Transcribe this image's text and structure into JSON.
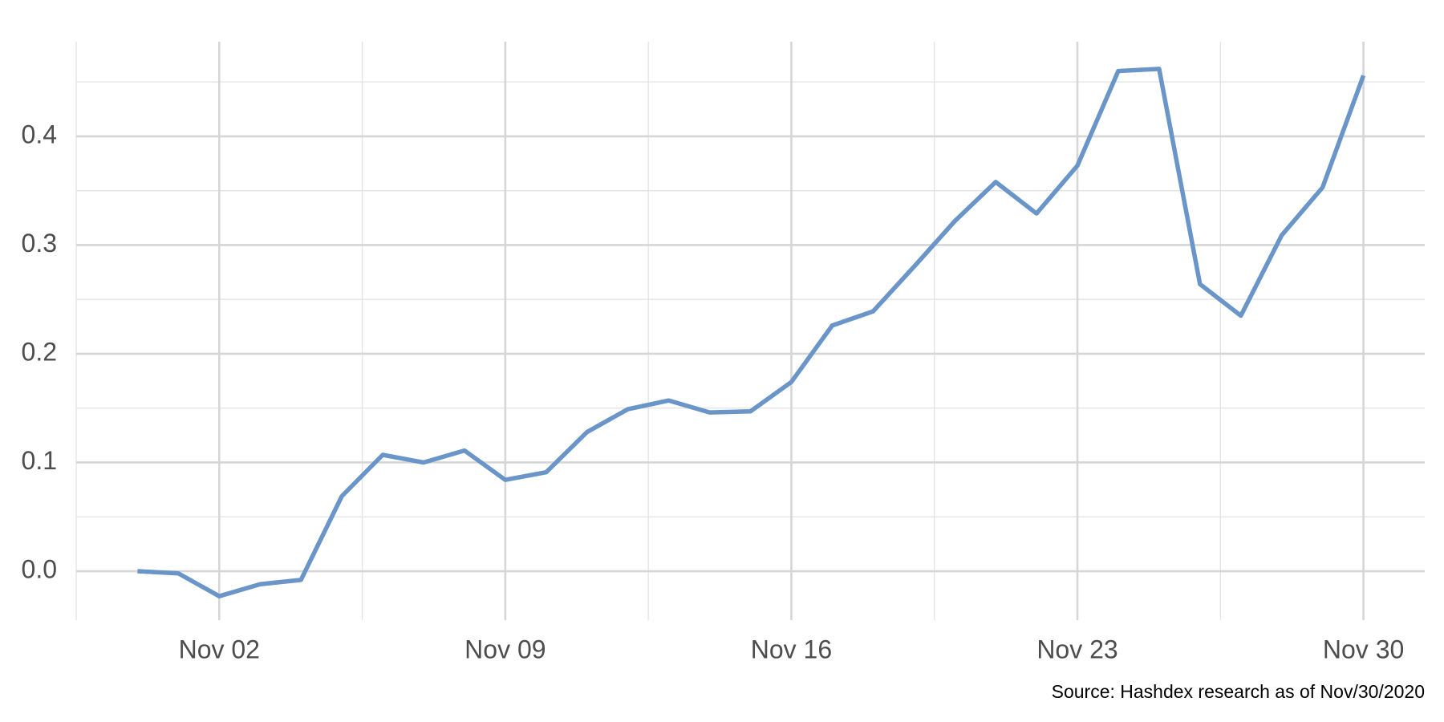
{
  "chart_data": {
    "type": "line",
    "caption": "Source: Hashdex research as of Nov/30/2020",
    "x": [
      "Oct 31",
      "Nov 01",
      "Nov 02",
      "Nov 03",
      "Nov 04",
      "Nov 05",
      "Nov 06",
      "Nov 07",
      "Nov 08",
      "Nov 09",
      "Nov 10",
      "Nov 11",
      "Nov 12",
      "Nov 13",
      "Nov 14",
      "Nov 15",
      "Nov 16",
      "Nov 17",
      "Nov 18",
      "Nov 19",
      "Nov 20",
      "Nov 21",
      "Nov 22",
      "Nov 23",
      "Nov 24",
      "Nov 25",
      "Nov 26",
      "Nov 27",
      "Nov 28",
      "Nov 29",
      "Nov 30"
    ],
    "values": [
      0.0,
      -0.002,
      -0.023,
      -0.012,
      -0.008,
      0.069,
      0.107,
      0.1,
      0.111,
      0.084,
      0.091,
      0.128,
      0.149,
      0.157,
      0.146,
      0.147,
      0.174,
      0.226,
      0.239,
      0.28,
      0.322,
      0.358,
      0.329,
      0.373,
      0.46,
      0.462,
      0.264,
      0.235,
      0.309,
      0.353,
      0.456
    ],
    "color": "#6a95c8",
    "xticks": [
      "Nov 02",
      "Nov 09",
      "Nov 16",
      "Nov 23",
      "Nov 30"
    ],
    "ylim": [
      -0.045,
      0.487
    ],
    "yticks": [
      {
        "value": 0,
        "label": "0.0"
      },
      0.1,
      0.2,
      0.3,
      0.4
    ],
    "grid": true
  }
}
